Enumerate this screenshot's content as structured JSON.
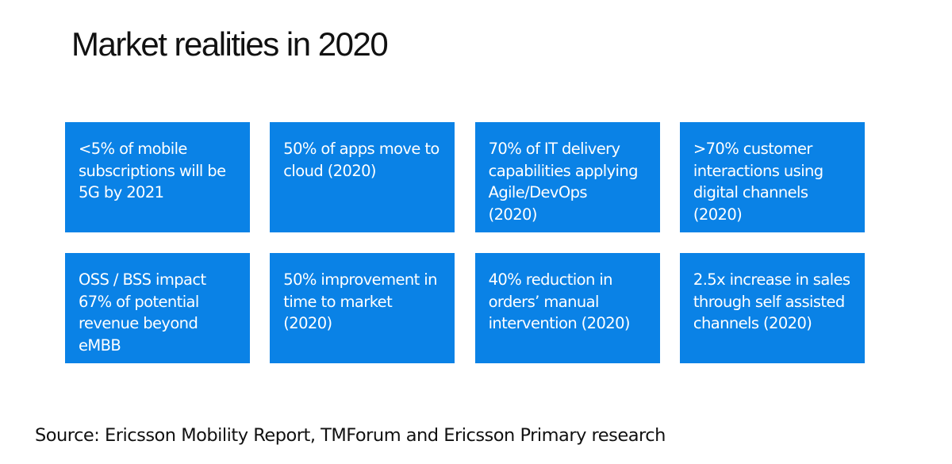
{
  "slide": {
    "title": "Market realities in 2020",
    "source": "Source: Ericsson Mobility Report, TMForum and Ericsson Primary research"
  },
  "cards": [
    {
      "text": "<5% of mobile\nsubscriptions will be\n5G by 2021"
    },
    {
      "text": "50% of apps move to\ncloud (2020)"
    },
    {
      "text": "70% of IT delivery\ncapabilities applying\nAgile/DevOps\n(2020)"
    },
    {
      "text": ">70% customer\ninteractions using\ndigital channels\n(2020)"
    },
    {
      "text": "OSS / BSS impact\n67% of potential\nrevenue beyond\neMBB"
    },
    {
      "text": "50% improvement in\ntime to market\n(2020)"
    },
    {
      "text": "40% reduction in\norders’ manual\nintervention  (2020)"
    },
    {
      "text": "2.5x increase in sales\nthrough self assisted\nchannels (2020)"
    }
  ],
  "colors": {
    "card_background": "#0a82e6",
    "card_text": "#ffffff",
    "title_text": "#111111"
  }
}
